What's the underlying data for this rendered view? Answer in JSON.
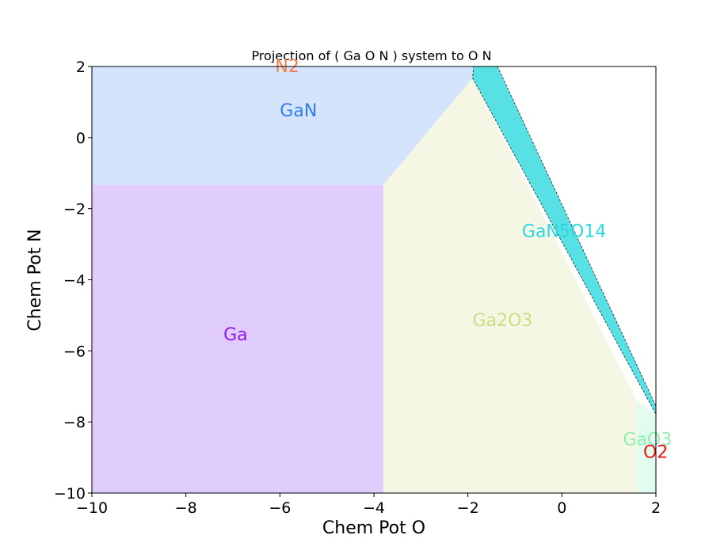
{
  "chart_data": {
    "type": "phase-diagram",
    "title": "Projection of ( Ga O N ) system to O N",
    "xlabel": "Chem Pot O",
    "ylabel": "Chem Pot N",
    "xlim": [
      -10,
      2
    ],
    "ylim": [
      -10,
      2
    ],
    "xticks": [
      -10,
      -8,
      -6,
      -4,
      -2,
      0,
      2
    ],
    "yticks": [
      -10,
      -8,
      -6,
      -4,
      -2,
      0,
      2
    ],
    "xtick_labels": [
      "−10",
      "−8",
      "−6",
      "−4",
      "−2",
      "0",
      "2"
    ],
    "ytick_labels": [
      "−10",
      "−8",
      "−6",
      "−4",
      "−2",
      "0",
      "2"
    ],
    "regions": [
      {
        "name": "Ga",
        "color": "#e1cdfd",
        "label_color": "#9016f2",
        "label_pos": [
          -7.2,
          -5.7
        ],
        "polygon": [
          [
            -10,
            -10
          ],
          [
            -3.8,
            -10
          ],
          [
            -3.8,
            -1.33
          ],
          [
            -10,
            -1.33
          ]
        ]
      },
      {
        "name": "GaN",
        "color": "#d4e4fc",
        "label_color": "#2f7ee6",
        "label_pos": [
          -6.0,
          0.6
        ],
        "polygon": [
          [
            -10,
            -1.33
          ],
          [
            -3.8,
            -1.33
          ],
          [
            -1.9,
            1.67
          ],
          [
            -1.87,
            2
          ],
          [
            -10,
            2
          ]
        ]
      },
      {
        "name": "Ga2O3",
        "color": "#f5f6e3",
        "label_color": "#cddd82",
        "label_pos": [
          -1.9,
          -5.3
        ],
        "polygon": [
          [
            -3.8,
            -10
          ],
          [
            1.6,
            -10
          ],
          [
            1.6,
            -7.4
          ],
          [
            -1.9,
            1.67
          ],
          [
            -3.8,
            -1.33
          ]
        ]
      },
      {
        "name": "GaN5O14",
        "color": "#57e1e5",
        "label_color": "#2ad9e0",
        "label_pos": [
          -0.85,
          -2.8
        ],
        "polygon": [
          [
            -1.88,
            2
          ],
          [
            -1.37,
            2
          ],
          [
            2,
            -7.55
          ],
          [
            2,
            -7.78
          ],
          [
            -1.9,
            1.67
          ]
        ]
      },
      {
        "name": "GaO3",
        "color": "#e0fdf0",
        "label_color": "#90eeb2",
        "label_pos": [
          1.3,
          -8.65
        ],
        "polygon": [
          [
            1.6,
            -10
          ],
          [
            2,
            -10
          ],
          [
            2,
            -7.78
          ],
          [
            1.6,
            -7.4
          ]
        ]
      }
    ],
    "labels": [
      {
        "name": "N2",
        "color": "#f3804e",
        "pos": [
          -6.1,
          2.0
        ]
      },
      {
        "name": "O2",
        "color": "#e81818",
        "pos": [
          1.73,
          -8.85
        ]
      }
    ]
  }
}
